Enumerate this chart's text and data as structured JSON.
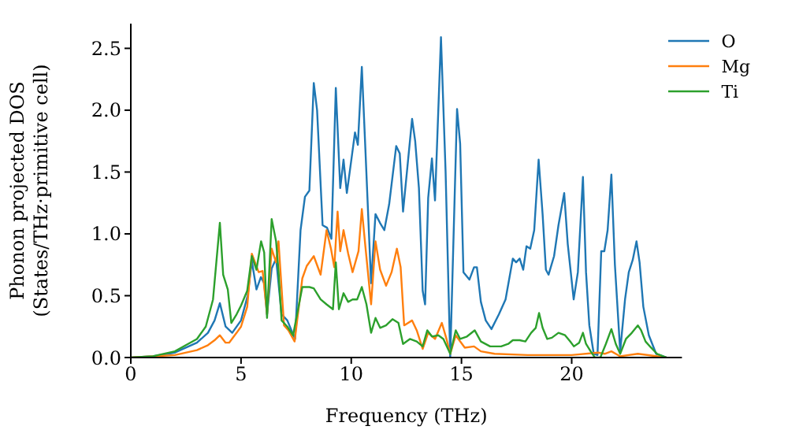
{
  "chart_data": {
    "type": "line",
    "xlabel": "Frequency (THz)",
    "ylabel": "Phonon projected DOS\n(States/THz·primitive cell)",
    "xlim": [
      0,
      25
    ],
    "xticks": [
      0,
      5,
      10,
      15,
      20
    ],
    "ylim": [
      0,
      2.7
    ],
    "yticks": [
      {
        "value": 0,
        "label": "0.0"
      },
      0.5,
      {
        "value": 1,
        "label": "1.0"
      },
      1.5,
      {
        "value": 2,
        "label": "2.0"
      },
      2.5
    ],
    "grid": false,
    "legend": "top right",
    "marker": "none",
    "line_style": "solid",
    "series": [
      {
        "name": "O",
        "color": "#1f77b4",
        "x": [
          0,
          1,
          2,
          3,
          3.5,
          3.8,
          4.04,
          4.3,
          4.6,
          5.0,
          5.3,
          5.49,
          5.7,
          5.9,
          6.05,
          6.18,
          6.39,
          6.59,
          6.84,
          7.1,
          7.45,
          7.7,
          7.9,
          8.1,
          8.3,
          8.45,
          8.7,
          8.9,
          9.1,
          9.3,
          9.5,
          9.65,
          9.8,
          9.96,
          10.17,
          10.3,
          10.48,
          10.64,
          10.9,
          11.1,
          11.3,
          11.5,
          11.72,
          12.04,
          12.2,
          12.35,
          12.76,
          12.9,
          13.07,
          13.24,
          13.35,
          13.49,
          13.66,
          13.8,
          14.07,
          14.28,
          14.49,
          14.8,
          14.94,
          15.09,
          15.36,
          15.57,
          15.7,
          15.88,
          16.1,
          16.36,
          16.7,
          17.0,
          17.33,
          17.48,
          17.64,
          17.8,
          17.95,
          18.12,
          18.3,
          18.5,
          18.68,
          18.83,
          18.95,
          19.2,
          19.4,
          19.66,
          19.82,
          20.09,
          20.28,
          20.51,
          20.65,
          20.8,
          21.0,
          21.17,
          21.34,
          21.48,
          21.63,
          21.8,
          21.96,
          22.2,
          22.42,
          22.59,
          22.77,
          22.94,
          23.08,
          23.25,
          23.5,
          23.83,
          24.3
        ],
        "values": [
          0,
          0.01,
          0.04,
          0.12,
          0.2,
          0.3,
          0.44,
          0.25,
          0.2,
          0.3,
          0.5,
          0.78,
          0.55,
          0.65,
          0.6,
          0.35,
          0.72,
          0.8,
          0.35,
          0.3,
          0.15,
          1.03,
          1.3,
          1.35,
          2.22,
          2.0,
          1.07,
          1.05,
          0.96,
          2.18,
          1.37,
          1.6,
          1.33,
          1.54,
          1.82,
          1.72,
          2.35,
          1.69,
          0.6,
          1.16,
          1.09,
          1.03,
          1.24,
          1.71,
          1.65,
          1.18,
          1.93,
          1.75,
          1.37,
          0.54,
          0.43,
          1.29,
          1.61,
          1.27,
          2.59,
          1.5,
          0,
          2.01,
          1.73,
          0.69,
          0.63,
          0.73,
          0.73,
          0.45,
          0.3,
          0.23,
          0.35,
          0.47,
          0.8,
          0.77,
          0.8,
          0.71,
          0.9,
          0.88,
          1.03,
          1.6,
          1.16,
          0.71,
          0.67,
          0.82,
          1.07,
          1.33,
          0.92,
          0.47,
          0.69,
          1.46,
          0.69,
          0.26,
          0.03,
          0.02,
          0.86,
          0.86,
          1.03,
          1.48,
          0.75,
          0.05,
          0.47,
          0.69,
          0.79,
          0.94,
          0.77,
          0.41,
          0.18,
          0.03,
          0
        ]
      },
      {
        "name": "Mg",
        "color": "#ff7f0e",
        "x": [
          0,
          1,
          2,
          3,
          3.5,
          3.8,
          4.04,
          4.3,
          4.46,
          4.8,
          5.0,
          5.28,
          5.49,
          5.8,
          5.98,
          6.18,
          6.39,
          6.59,
          6.7,
          6.95,
          7.15,
          7.43,
          7.78,
          7.98,
          8.3,
          8.61,
          8.88,
          9.08,
          9.23,
          9.38,
          9.5,
          9.65,
          9.86,
          10.06,
          10.33,
          10.48,
          10.64,
          10.9,
          11.1,
          11.31,
          11.58,
          11.83,
          12.07,
          12.24,
          12.4,
          12.76,
          12.97,
          13.24,
          13.49,
          13.8,
          14.11,
          14.32,
          14.49,
          14.74,
          14.94,
          15.15,
          15.57,
          15.88,
          16.5,
          18,
          20,
          21.2,
          21.5,
          21.8,
          22.2,
          23,
          24.3
        ],
        "values": [
          0,
          0.01,
          0.02,
          0.06,
          0.1,
          0.14,
          0.18,
          0.12,
          0.12,
          0.2,
          0.25,
          0.41,
          0.84,
          0.69,
          0.7,
          0.35,
          0.88,
          0.77,
          0.94,
          0.26,
          0.22,
          0.13,
          0.64,
          0.74,
          0.82,
          0.67,
          1.03,
          0.88,
          0.73,
          1.18,
          0.86,
          1.03,
          0.84,
          0.69,
          0.86,
          1.2,
          0.9,
          0.43,
          0.94,
          0.71,
          0.58,
          0.69,
          0.88,
          0.73,
          0.26,
          0.3,
          0.22,
          0.07,
          0.2,
          0.15,
          0.28,
          0.15,
          0.03,
          0.18,
          0.13,
          0.08,
          0.09,
          0.05,
          0.03,
          0.02,
          0.02,
          0.04,
          0.03,
          0.05,
          0.01,
          0.03,
          0
        ]
      },
      {
        "name": "Ti",
        "color": "#2ca02c",
        "x": [
          0,
          1,
          2,
          2.5,
          3,
          3.4,
          3.73,
          4.04,
          4.19,
          4.4,
          4.56,
          4.8,
          5.0,
          5.28,
          5.49,
          5.7,
          5.91,
          6.05,
          6.18,
          6.39,
          6.59,
          6.7,
          6.84,
          7.1,
          7.36,
          7.78,
          8.1,
          8.3,
          8.61,
          8.88,
          9.17,
          9.3,
          9.44,
          9.65,
          9.86,
          10.06,
          10.27,
          10.48,
          10.69,
          10.9,
          11.1,
          11.31,
          11.58,
          11.87,
          12.14,
          12.35,
          12.66,
          12.97,
          13.24,
          13.45,
          13.66,
          13.95,
          14.18,
          14.49,
          14.74,
          14.94,
          15.25,
          15.6,
          15.88,
          16.3,
          16.8,
          17.12,
          17.33,
          17.64,
          17.9,
          18.16,
          18.37,
          18.52,
          18.68,
          18.89,
          19.1,
          19.4,
          19.7,
          19.93,
          20.1,
          20.34,
          20.51,
          20.65,
          20.86,
          21.05,
          21.3,
          21.55,
          21.8,
          22.0,
          22.2,
          22.46,
          22.73,
          23.0,
          23.15,
          23.35,
          23.6,
          23.87,
          24.3
        ],
        "values": [
          0,
          0.01,
          0.05,
          0.1,
          0.15,
          0.25,
          0.47,
          1.09,
          0.67,
          0.55,
          0.28,
          0.35,
          0.42,
          0.54,
          0.82,
          0.71,
          0.94,
          0.85,
          0.32,
          1.12,
          0.94,
          0.7,
          0.3,
          0.25,
          0.18,
          0.57,
          0.57,
          0.56,
          0.47,
          0.43,
          0.39,
          0.77,
          0.39,
          0.52,
          0.45,
          0.47,
          0.47,
          0.57,
          0.43,
          0.2,
          0.32,
          0.24,
          0.26,
          0.31,
          0.28,
          0.11,
          0.15,
          0.13,
          0.09,
          0.22,
          0.17,
          0.18,
          0.15,
          0.03,
          0.22,
          0.15,
          0.17,
          0.22,
          0.13,
          0.09,
          0.09,
          0.11,
          0.14,
          0.14,
          0.13,
          0.2,
          0.24,
          0.36,
          0.24,
          0.15,
          0.16,
          0.2,
          0.18,
          0.13,
          0.09,
          0.12,
          0.2,
          0.11,
          0.05,
          0,
          0,
          0.11,
          0.23,
          0.11,
          0.03,
          0.15,
          0.2,
          0.26,
          0.22,
          0.13,
          0.08,
          0.03,
          0
        ]
      }
    ]
  }
}
